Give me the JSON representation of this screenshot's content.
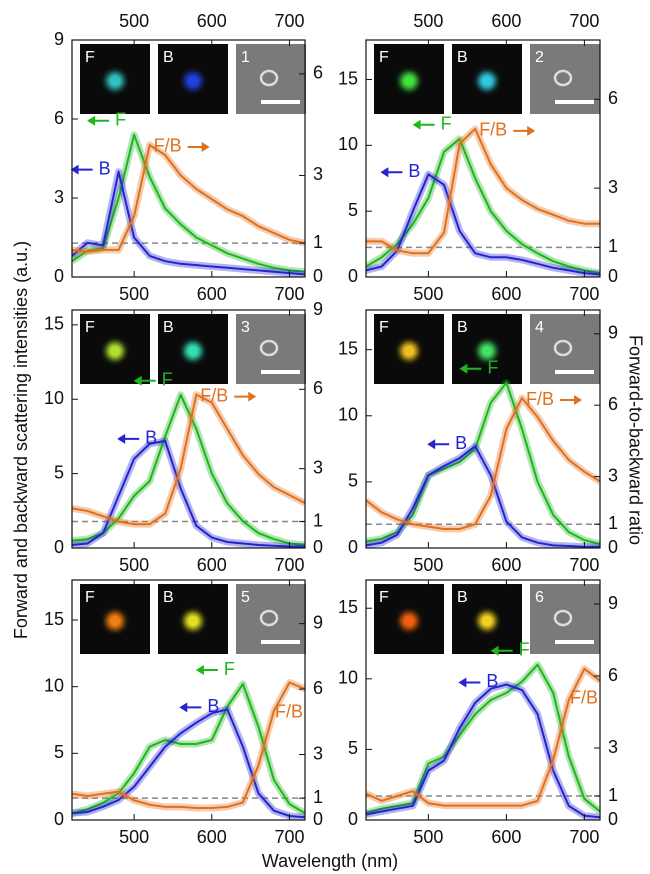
{
  "y_label": "Forward and backward scattering intensities (a.u.)",
  "y2_label": "Forward-to-backward ratio",
  "x_label": "Wavelength (nm)",
  "chart_data": [
    {
      "type": "line",
      "x": [
        420,
        440,
        460,
        480,
        500,
        520,
        540,
        560,
        580,
        600,
        620,
        640,
        660,
        680,
        700,
        720
      ],
      "xlim": [
        420,
        720
      ],
      "xticks": [
        500,
        600,
        700
      ],
      "xticks_top": true,
      "ylim": [
        0,
        9
      ],
      "yticks": [
        0,
        3,
        6,
        9
      ],
      "y2lim": [
        0,
        7
      ],
      "y2ticks": [
        0,
        1,
        3,
        6
      ],
      "ref_line_y2": 1,
      "inset_labels": [
        "F",
        "B",
        "1"
      ],
      "inset_spot_colors": [
        "#30c0c0",
        "#2040e0"
      ],
      "series": [
        {
          "name": "F",
          "color": "#1fb51f",
          "values": [
            0.6,
            1.0,
            1.1,
            3.0,
            5.4,
            3.8,
            2.6,
            2.0,
            1.5,
            1.2,
            0.9,
            0.7,
            0.5,
            0.35,
            0.25,
            0.2
          ]
        },
        {
          "name": "B",
          "color": "#2424d0",
          "values": [
            0.8,
            1.3,
            1.2,
            4.0,
            1.5,
            0.8,
            0.6,
            0.5,
            0.45,
            0.4,
            0.35,
            0.3,
            0.25,
            0.2,
            0.15,
            0.1
          ]
        },
        {
          "name": "F/B",
          "color": "#e0701e",
          "axis": "y2",
          "values": [
            0.8,
            0.75,
            0.8,
            0.8,
            1.8,
            3.9,
            3.6,
            3.0,
            2.6,
            2.3,
            2.0,
            1.8,
            1.5,
            1.3,
            1.1,
            1.0
          ]
        }
      ]
    },
    {
      "type": "line",
      "x": [
        420,
        440,
        460,
        480,
        500,
        520,
        540,
        560,
        580,
        600,
        620,
        640,
        660,
        680,
        700,
        720
      ],
      "xlim": [
        420,
        720
      ],
      "xticks": [
        500,
        600,
        700
      ],
      "xticks_top": true,
      "ylim": [
        0,
        18
      ],
      "yticks": [
        0,
        5,
        10,
        15
      ],
      "y2lim": [
        0,
        8
      ],
      "y2ticks": [
        0,
        1,
        3,
        6
      ],
      "ref_line_y2": 1,
      "inset_labels": [
        "F",
        "B",
        "2"
      ],
      "inset_spot_colors": [
        "#40e040",
        "#30c8e0"
      ],
      "series": [
        {
          "name": "F",
          "color": "#1fb51f",
          "values": [
            0.8,
            1.5,
            2.5,
            4.0,
            6.0,
            9.5,
            10.5,
            7.5,
            5.0,
            3.5,
            2.5,
            1.8,
            1.2,
            0.8,
            0.5,
            0.3
          ]
        },
        {
          "name": "B",
          "color": "#2424d0",
          "values": [
            0.5,
            0.8,
            2.0,
            5.0,
            7.8,
            7.0,
            3.5,
            1.8,
            1.5,
            1.5,
            1.3,
            1.0,
            0.7,
            0.5,
            0.3,
            0.2
          ]
        },
        {
          "name": "F/B",
          "color": "#e0701e",
          "axis": "y2",
          "values": [
            1.2,
            1.2,
            0.9,
            0.8,
            0.8,
            1.5,
            4.5,
            5.0,
            3.8,
            3.0,
            2.6,
            2.3,
            2.1,
            1.9,
            1.8,
            1.8
          ]
        }
      ]
    },
    {
      "type": "line",
      "x": [
        420,
        440,
        460,
        480,
        500,
        520,
        540,
        560,
        580,
        600,
        620,
        640,
        660,
        680,
        700,
        720
      ],
      "xlim": [
        420,
        720
      ],
      "xticks": [
        500,
        600,
        700
      ],
      "ylim": [
        0,
        16
      ],
      "yticks": [
        0,
        5,
        10,
        15
      ],
      "y2lim": [
        0,
        9
      ],
      "y2ticks": [
        0,
        1,
        3,
        6,
        9
      ],
      "ref_line_y2": 1,
      "inset_labels": [
        "F",
        "B",
        "3"
      ],
      "inset_spot_colors": [
        "#b0e030",
        "#30e0b0"
      ],
      "series": [
        {
          "name": "F",
          "color": "#1fb51f",
          "values": [
            0.5,
            0.6,
            1.0,
            2.0,
            3.5,
            4.5,
            7.5,
            10.3,
            8.0,
            5.0,
            3.0,
            1.8,
            1.0,
            0.6,
            0.3,
            0.2
          ]
        },
        {
          "name": "B",
          "color": "#2424d0",
          "values": [
            0.2,
            0.3,
            1.0,
            3.5,
            6.0,
            7.0,
            7.2,
            4.0,
            1.5,
            0.7,
            0.4,
            0.3,
            0.2,
            0.15,
            0.1,
            0.1
          ]
        },
        {
          "name": "F/B",
          "color": "#e0701e",
          "axis": "y2",
          "values": [
            1.5,
            1.4,
            1.2,
            1.0,
            0.9,
            0.9,
            1.3,
            3.0,
            5.8,
            5.5,
            4.5,
            3.5,
            2.8,
            2.3,
            2.0,
            1.7
          ]
        }
      ]
    },
    {
      "type": "line",
      "x": [
        420,
        440,
        460,
        480,
        500,
        520,
        540,
        560,
        580,
        600,
        620,
        640,
        660,
        680,
        700,
        720
      ],
      "xlim": [
        420,
        720
      ],
      "xticks": [
        500,
        600,
        700
      ],
      "ylim": [
        0,
        18
      ],
      "yticks": [
        0,
        5,
        10,
        15
      ],
      "y2lim": [
        0,
        10
      ],
      "y2ticks": [
        0,
        1,
        3,
        6,
        9
      ],
      "ref_line_y2": 1,
      "inset_labels": [
        "F",
        "B",
        "4"
      ],
      "inset_spot_colors": [
        "#f0c020",
        "#40e060"
      ],
      "series": [
        {
          "name": "F",
          "color": "#1fb51f",
          "values": [
            0.5,
            0.7,
            1.2,
            2.5,
            5.5,
            6.0,
            6.5,
            7.5,
            11.0,
            12.5,
            9.0,
            5.0,
            2.5,
            1.2,
            0.6,
            0.3
          ]
        },
        {
          "name": "B",
          "color": "#2424d0",
          "values": [
            0.2,
            0.4,
            1.0,
            3.0,
            5.5,
            6.2,
            6.8,
            7.7,
            5.5,
            2.0,
            0.8,
            0.4,
            0.2,
            0.15,
            0.1,
            0.1
          ]
        },
        {
          "name": "F/B",
          "color": "#e0701e",
          "axis": "y2",
          "values": [
            2.0,
            1.5,
            1.2,
            1.0,
            0.9,
            0.8,
            0.8,
            1.0,
            2.2,
            5.0,
            6.3,
            5.5,
            4.5,
            3.7,
            3.2,
            2.8
          ]
        }
      ]
    },
    {
      "type": "line",
      "x": [
        420,
        440,
        460,
        480,
        500,
        520,
        540,
        560,
        580,
        600,
        620,
        640,
        660,
        680,
        700,
        720
      ],
      "xlim": [
        420,
        720
      ],
      "xticks": [
        500,
        600,
        700
      ],
      "ylim": [
        0,
        18
      ],
      "yticks": [
        0,
        5,
        10,
        15
      ],
      "y2lim": [
        0,
        11
      ],
      "y2ticks": [
        0,
        1,
        3,
        6,
        9
      ],
      "ref_line_y2": 1,
      "inset_labels": [
        "F",
        "B",
        "5"
      ],
      "inset_spot_colors": [
        "#f08010",
        "#e0e020"
      ],
      "series": [
        {
          "name": "F",
          "color": "#1fb51f",
          "values": [
            0.5,
            0.8,
            1.3,
            2.0,
            3.5,
            5.5,
            6.0,
            5.7,
            5.7,
            6.0,
            8.5,
            10.2,
            7.0,
            3.0,
            1.2,
            0.5
          ]
        },
        {
          "name": "B",
          "color": "#2424d0",
          "values": [
            0.5,
            0.6,
            1.0,
            1.5,
            2.5,
            4.0,
            5.5,
            6.5,
            7.3,
            8.0,
            8.3,
            5.5,
            2.0,
            0.7,
            0.3,
            0.2
          ]
        },
        {
          "name": "F/B",
          "color": "#e0701e",
          "axis": "y2",
          "values": [
            1.2,
            1.1,
            1.2,
            1.3,
            0.9,
            0.7,
            0.6,
            0.6,
            0.55,
            0.55,
            0.6,
            0.8,
            2.5,
            5.0,
            6.3,
            6.0
          ]
        }
      ]
    },
    {
      "type": "line",
      "x": [
        420,
        440,
        460,
        480,
        500,
        520,
        540,
        560,
        580,
        600,
        620,
        640,
        660,
        680,
        700,
        720
      ],
      "xlim": [
        420,
        720
      ],
      "xticks": [
        500,
        600,
        700
      ],
      "ylim": [
        0,
        17
      ],
      "yticks": [
        0,
        5,
        10,
        15
      ],
      "y2lim": [
        0,
        10
      ],
      "y2ticks": [
        0,
        1,
        3,
        6,
        9
      ],
      "ref_line_y2": 1,
      "inset_labels": [
        "F",
        "B",
        "6"
      ],
      "inset_spot_colors": [
        "#f06010",
        "#f0d020"
      ],
      "series": [
        {
          "name": "F",
          "color": "#1fb51f",
          "values": [
            0.5,
            0.8,
            1.0,
            1.2,
            4.0,
            4.5,
            6.0,
            7.5,
            8.5,
            9.0,
            9.8,
            11.0,
            9.0,
            4.5,
            1.5,
            0.6
          ]
        },
        {
          "name": "B",
          "color": "#2424d0",
          "values": [
            0.4,
            0.6,
            0.8,
            1.0,
            3.5,
            4.2,
            6.5,
            8.3,
            9.3,
            9.6,
            9.2,
            7.5,
            3.5,
            1.0,
            0.3,
            0.2
          ]
        },
        {
          "name": "F/B",
          "color": "#e0701e",
          "axis": "y2",
          "values": [
            1.1,
            0.8,
            1.0,
            1.2,
            0.7,
            0.6,
            0.6,
            0.6,
            0.6,
            0.6,
            0.6,
            0.8,
            2.5,
            5.0,
            6.3,
            5.8
          ]
        }
      ]
    }
  ]
}
